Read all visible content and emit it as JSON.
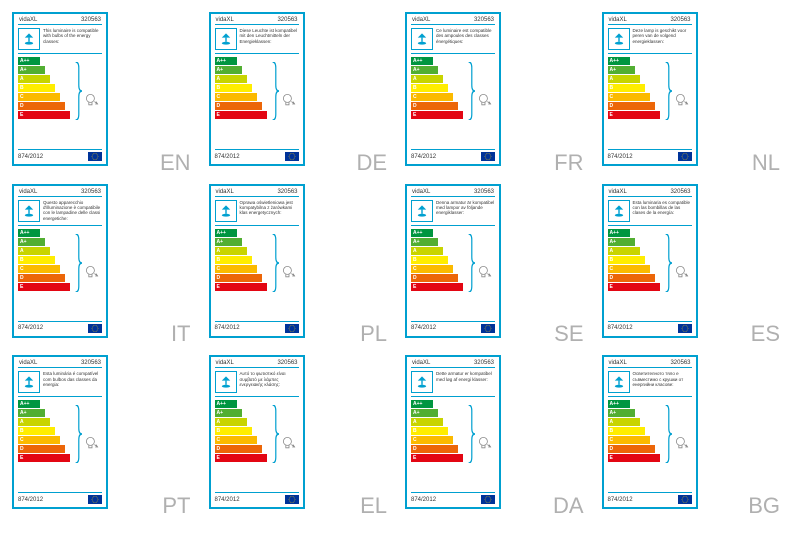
{
  "brand": "vidaXL",
  "product_code": "320563",
  "regulation": "874/2012",
  "energy_classes": [
    {
      "label": "A++",
      "width": 20,
      "color": "#009640"
    },
    {
      "label": "A+",
      "width": 25,
      "color": "#52ae32"
    },
    {
      "label": "A",
      "width": 30,
      "color": "#c8d400"
    },
    {
      "label": "B",
      "width": 35,
      "color": "#ffed00"
    },
    {
      "label": "C",
      "width": 40,
      "color": "#fbba00"
    },
    {
      "label": "D",
      "width": 45,
      "color": "#ec6608"
    },
    {
      "label": "E",
      "width": 50,
      "color": "#e30613"
    }
  ],
  "labels": [
    {
      "lang": "EN",
      "text": "This luminaire is compatible with bulbs of the energy classes:"
    },
    {
      "lang": "DE",
      "text": "Diese Leuchte ist kompatibel mit den Leuchtmitteln der Energieklassen:"
    },
    {
      "lang": "FR",
      "text": "Ce luminaire est compatible des ampoules des classes énergétiques:"
    },
    {
      "lang": "NL",
      "text": "Deze lamp is geschikt voor peren van de volgend energieklassen:"
    },
    {
      "lang": "IT",
      "text": "Questo apparecchio d'illuminazione è compatibile con le lampadine delle classi energetiche:"
    },
    {
      "lang": "PL",
      "text": "Oprawa oświetleniowa jest kompatybilna z żarówkami klas energetycznych:"
    },
    {
      "lang": "SE",
      "text": "Denna armatur är kompatibel med lampor av följande energiklasser:"
    },
    {
      "lang": "ES",
      "text": "Esta luminaria es compatible con las bombillas de las clases de la energía:"
    },
    {
      "lang": "PT",
      "text": "Esta luminária é compatível com bulbos das classes da energia:"
    },
    {
      "lang": "EL",
      "text": "Αυτό το φωτιστικό είναι συμβατό με λάμπες ενεργειακής κλάσης:"
    },
    {
      "lang": "DA",
      "text": "Dette armatur er kompatibel med løg af energi klasser:"
    },
    {
      "lang": "BG",
      "text": "Осветителното тяло е съвместимо с крушки от енергийни класове:"
    }
  ]
}
